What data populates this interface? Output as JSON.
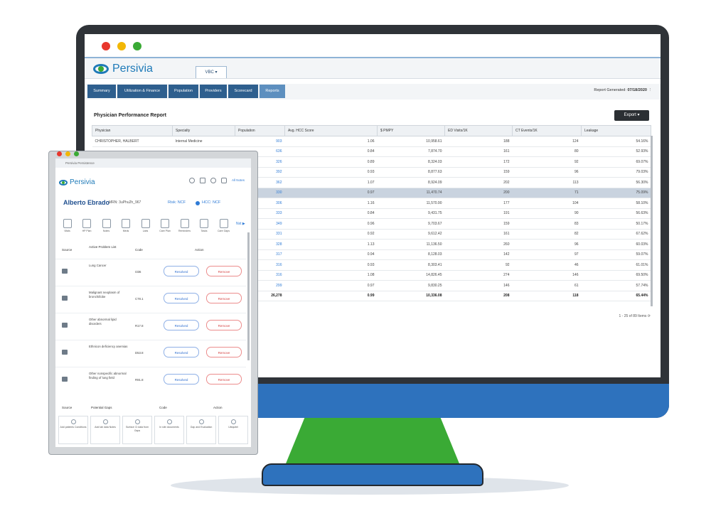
{
  "main_window": {
    "brand": "Persivia",
    "tab": "VBC ▾",
    "nav": [
      "Summary",
      "Utilization & Finance",
      "Population",
      "Providers",
      "Scorecard",
      "Reports"
    ],
    "active_nav": "Reports",
    "report_generated_label": "Report Generated:",
    "report_generated_date": "07/18/2020",
    "report_title": "Physician Performance Report",
    "export_label": "Export ▾",
    "columns": [
      "Physician",
      "Specialty",
      "Population",
      "Avg. HCC Score",
      "$ PMPY",
      "ED Visits/1K",
      "CT Events/1K",
      "Leakage"
    ],
    "rows": [
      [
        "CHRISTOPHER, HALBERT",
        "Internal Medicine",
        "903",
        "1.06",
        "10,958.61",
        "188",
        "124",
        "54.16%"
      ],
      [
        "",
        "",
        "636",
        "0.84",
        "7,874.70",
        "161",
        "80",
        "52.93%"
      ],
      [
        "",
        "",
        "326",
        "0.89",
        "8,324.03",
        "172",
        "92",
        "69.07%"
      ],
      [
        "",
        "",
        "392",
        "0.93",
        "8,877.63",
        "159",
        "96",
        "79.03%"
      ],
      [
        "",
        "",
        "362",
        "1.07",
        "8,924.09",
        "202",
        "113",
        "56.30%"
      ],
      [
        "",
        "",
        "330",
        "0.97",
        "11,470.74",
        "200",
        "71",
        "75.09%"
      ],
      [
        "",
        "",
        "306",
        "1.16",
        "11,570.90",
        "177",
        "104",
        "58.10%"
      ],
      [
        "",
        "",
        "333",
        "0.84",
        "9,431.75",
        "191",
        "90",
        "56.63%"
      ],
      [
        "",
        "",
        "349",
        "0.96",
        "9,703.67",
        "159",
        "83",
        "50.17%"
      ],
      [
        "",
        "",
        "331",
        "0.92",
        "9,612.42",
        "161",
        "82",
        "67.62%"
      ],
      [
        "",
        "",
        "328",
        "1.13",
        "11,136.50",
        "260",
        "96",
        "60.03%"
      ],
      [
        "",
        "",
        "317",
        "0.94",
        "8,128.03",
        "142",
        "97",
        "59.07%"
      ],
      [
        "",
        "",
        "316",
        "0.93",
        "8,303.41",
        "92",
        "46",
        "61.01%"
      ],
      [
        "",
        "",
        "316",
        "1.08",
        "14,826.45",
        "274",
        "146",
        "69.50%"
      ],
      [
        "",
        "",
        "299",
        "0.97",
        "9,830.25",
        "146",
        "61",
        "57.74%"
      ]
    ],
    "totals": [
      "",
      "",
      "26,278",
      "0.99",
      "10,336.08",
      "208",
      "118",
      "65.44%"
    ],
    "pager": "1 - 25 of 89 Items"
  },
  "tablet": {
    "window_title": "Persivia Persistence",
    "brand": "Persivia",
    "all_notes": "All Notes",
    "patient_name": "Alberto Ebrado",
    "patient_mrn": "MRN: 3uPhu2h_967",
    "risk_raf": "Risk: NCF",
    "hcc_raf": "HCC: NCF",
    "quick_icons": [
      "Vitals",
      "HP Plan",
      "Notes",
      "Meds",
      "Labs",
      "Care Plan",
      "Reminders",
      "Tasks",
      "Care Gaps"
    ],
    "problems_headers": [
      "Source",
      "Active Problem List",
      "Code",
      "Action"
    ],
    "problems": [
      {
        "desc": "Lung Cancer",
        "code": "I336"
      },
      {
        "desc": "Malignant neoplasm of bronchi/lobe",
        "code": "C78.1"
      },
      {
        "desc": "Other abnormal lipid disorders",
        "code": "R17.8"
      },
      {
        "desc": "Ethnicon deficiency anemias",
        "code": "D53.8"
      },
      {
        "desc": "Other nonspecific abnormal finding of lung field",
        "code": "R91.8"
      }
    ],
    "resolved_label": "Resolved",
    "remove_label": "Remove",
    "gaps_headers": [
      "Source",
      "Potential Gaps",
      "Code",
      "Action"
    ],
    "gap_cards": [
      "Add patients Conditions",
      "Add lab data Notes",
      "Surface Cl data from Gaps",
      "In site documents",
      "Gap and Evaluation",
      "Ubiquitel"
    ]
  }
}
